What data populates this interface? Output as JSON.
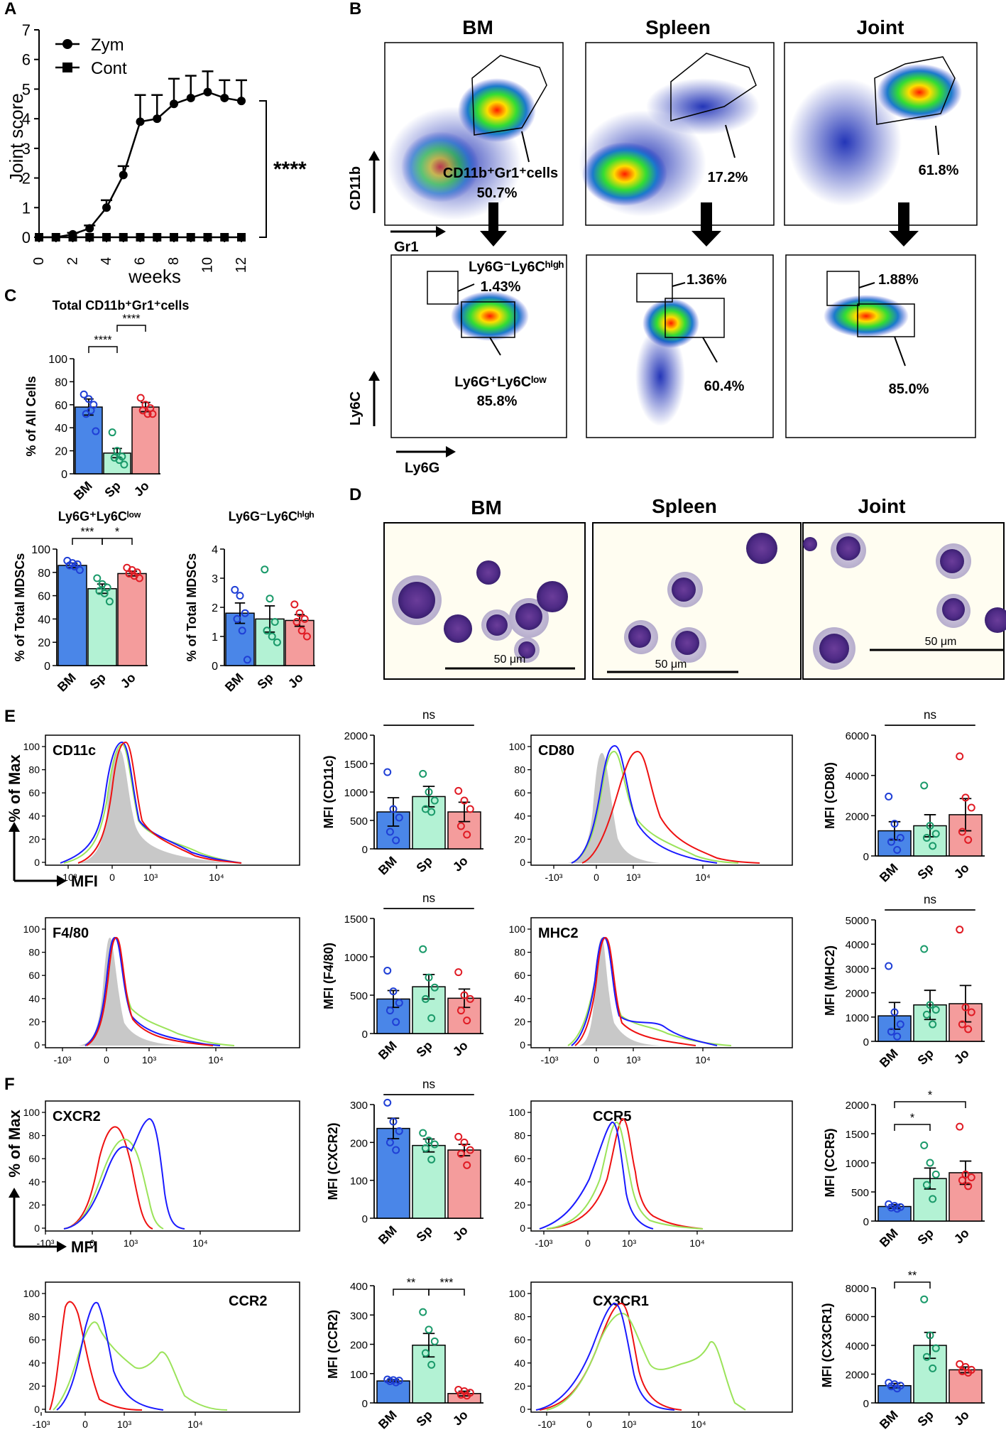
{
  "panels": {
    "A": {
      "letter": "A",
      "ylabel": "Joint score",
      "xlabel": "weeks",
      "significance": "****",
      "legend": [
        "Zym",
        "Cont"
      ],
      "yticks": [
        "0",
        "1",
        "2",
        "3",
        "4",
        "5",
        "6",
        "7"
      ],
      "xticks": [
        "0",
        "2",
        "4",
        "6",
        "8",
        "10",
        "12"
      ]
    },
    "B": {
      "letter": "B",
      "columns": [
        "BM",
        "Spleen",
        "Joint"
      ],
      "top_axis_y": "CD11b",
      "top_axis_x": "Gr1",
      "gate_label": "CD11b⁺Gr1⁺cells",
      "top_pct": [
        "50.7%",
        "17.2%",
        "61.8%"
      ],
      "bottom_axis_y": "Ly6C",
      "bottom_axis_x": "Ly6G",
      "high_label": "Ly6G⁻Ly6Cʰⁱᵍʰ",
      "low_label": "Ly6G⁺Ly6Cˡᵒʷ",
      "high_pct": [
        "1.43%",
        "1.36%",
        "1.88%"
      ],
      "low_pct": [
        "85.8%",
        "60.4%",
        "85.0%"
      ]
    },
    "C": {
      "letter": "C"
    },
    "D": {
      "letter": "D",
      "columns": [
        "BM",
        "Spleen",
        "Joint"
      ],
      "scale": "50 μm"
    },
    "E": {
      "letter": "E",
      "histo": [
        "CD11c",
        "CD80",
        "F4/80",
        "MHC2"
      ],
      "yaxis": "% of Max",
      "xaxis": "MFI",
      "xticks": [
        "-10³",
        "0",
        "10³",
        "10⁴"
      ],
      "hyticks": [
        "0",
        "20",
        "40",
        "60",
        "80",
        "100"
      ]
    },
    "F": {
      "letter": "F",
      "histo": [
        "CXCR2",
        "CCR5",
        "CCR2",
        "CX3CR1"
      ],
      "yaxis": "% of Max",
      "xaxis": "MFI"
    }
  },
  "chart_data": [
    {
      "id": "A",
      "type": "line",
      "title": "",
      "xlabel": "weeks",
      "ylabel": "Joint score",
      "ylim": [
        0,
        7
      ],
      "xlim": [
        0,
        12
      ],
      "series": [
        {
          "name": "Zym",
          "x": [
            0,
            1,
            2,
            3,
            4,
            5,
            6,
            7,
            8,
            9,
            10,
            11,
            12
          ],
          "values": [
            0,
            0,
            0.1,
            0.3,
            1.0,
            2.1,
            3.9,
            4.0,
            4.5,
            4.7,
            4.9,
            4.7,
            4.6
          ],
          "err": [
            0,
            0,
            0.05,
            0.1,
            0.25,
            0.3,
            0.9,
            0.8,
            0.85,
            0.75,
            0.7,
            0.6,
            0.7
          ]
        },
        {
          "name": "Cont",
          "x": [
            0,
            1,
            2,
            3,
            4,
            5,
            6,
            7,
            8,
            9,
            10,
            11,
            12
          ],
          "values": [
            0,
            0,
            0,
            0,
            0,
            0,
            0,
            0,
            0,
            0,
            0,
            0,
            0
          ]
        }
      ]
    },
    {
      "id": "C1",
      "type": "bar",
      "title": "Total CD11b⁺Gr1⁺cells",
      "ylabel": "% of All Cells",
      "ylim": [
        0,
        100
      ],
      "yticks": [
        "0",
        "20",
        "40",
        "60",
        "80",
        "100"
      ],
      "categories": [
        "BM",
        "Sp",
        "Jo"
      ],
      "values": [
        58,
        18,
        58
      ],
      "err": [
        7,
        4,
        4
      ],
      "points": [
        [
          69,
          65,
          60,
          52,
          55,
          37
        ],
        [
          36,
          20,
          15,
          14,
          12,
          8
        ],
        [
          66,
          60,
          57,
          55,
          52,
          52
        ]
      ],
      "brackets": [
        {
          "from": 0,
          "to": 1,
          "label": "****"
        },
        {
          "from": 1,
          "to": 2,
          "label": "****"
        }
      ]
    },
    {
      "id": "C2",
      "type": "bar",
      "title": "Ly6G⁺Ly6Cˡᵒʷ",
      "ylabel": "% of Total MDSCs",
      "ylim": [
        0,
        100
      ],
      "yticks": [
        "0",
        "20",
        "40",
        "60",
        "80",
        "100"
      ],
      "categories": [
        "BM",
        "Sp",
        "Jo"
      ],
      "values": [
        86,
        66,
        79
      ],
      "err": [
        2,
        4,
        2
      ],
      "points": [
        [
          90,
          88,
          87,
          86,
          85,
          82
        ],
        [
          75,
          70,
          67,
          64,
          62,
          55
        ],
        [
          84,
          82,
          80,
          79,
          77,
          75
        ]
      ],
      "brackets": [
        {
          "from": 0,
          "to": 1,
          "label": "***"
        },
        {
          "from": 1,
          "to": 2,
          "label": "*"
        }
      ]
    },
    {
      "id": "C3",
      "type": "bar",
      "title": "Ly6G⁻Ly6Cʰⁱᵍʰ",
      "ylabel": "% of Total MDSCs",
      "ylim": [
        0,
        4
      ],
      "yticks": [
        "0",
        "1",
        "2",
        "3",
        "4"
      ],
      "categories": [
        "BM",
        "Sp",
        "Jo"
      ],
      "values": [
        1.8,
        1.6,
        1.55
      ],
      "err": [
        0.35,
        0.45,
        0.2
      ],
      "points": [
        [
          2.6,
          2.4,
          1.8,
          1.6,
          1.2,
          0.2
        ],
        [
          3.3,
          2.3,
          1.5,
          1.2,
          1.0,
          0.8
        ],
        [
          2.1,
          1.8,
          1.6,
          1.5,
          1.2,
          1.0
        ]
      ],
      "brackets": []
    },
    {
      "id": "E1",
      "type": "bar",
      "ylabel": "MFI (CD11c)",
      "ylim": [
        0,
        2000
      ],
      "yticks": [
        "0",
        "500",
        "1000",
        "1500",
        "2000"
      ],
      "categories": [
        "BM",
        "Sp",
        "Jo"
      ],
      "values": [
        650,
        920,
        650
      ],
      "err": [
        250,
        180,
        170
      ],
      "points": [
        [
          1350,
          700,
          550,
          300,
          150
        ],
        [
          1320,
          1000,
          850,
          700,
          650
        ],
        [
          1020,
          850,
          700,
          400,
          250
        ]
      ],
      "brackets": [
        {
          "span": "all",
          "label": "ns"
        }
      ]
    },
    {
      "id": "E2",
      "type": "bar",
      "ylabel": "MFI (CD80)",
      "ylim": [
        0,
        6000
      ],
      "yticks": [
        "0",
        "2000",
        "4000",
        "6000"
      ],
      "categories": [
        "BM",
        "Sp",
        "Jo"
      ],
      "values": [
        1250,
        1500,
        2050
      ],
      "err": [
        450,
        550,
        800
      ],
      "points": [
        [
          2950,
          1600,
          900,
          700,
          300
        ],
        [
          3500,
          1500,
          1100,
          900,
          500
        ],
        [
          4950,
          2900,
          2400,
          1200,
          800
        ]
      ],
      "brackets": [
        {
          "span": "all",
          "label": "ns"
        }
      ]
    },
    {
      "id": "E3",
      "type": "bar",
      "ylabel": "MFI (F4/80)",
      "ylim": [
        0,
        1500
      ],
      "yticks": [
        "0",
        "500",
        "1000",
        "1500"
      ],
      "categories": [
        "BM",
        "Sp",
        "Jo"
      ],
      "values": [
        450,
        610,
        460
      ],
      "err": [
        110,
        160,
        120
      ],
      "points": [
        [
          820,
          550,
          400,
          300,
          150
        ],
        [
          1100,
          730,
          600,
          450,
          200
        ],
        [
          800,
          500,
          450,
          300,
          170
        ]
      ],
      "brackets": [
        {
          "span": "all",
          "label": "ns"
        }
      ]
    },
    {
      "id": "E4",
      "type": "bar",
      "ylabel": "MFI (MHC2)",
      "ylim": [
        0,
        5000
      ],
      "yticks": [
        "0",
        "1000",
        "2000",
        "3000",
        "4000",
        "5000"
      ],
      "categories": [
        "BM",
        "Sp",
        "Jo"
      ],
      "values": [
        1050,
        1500,
        1550
      ],
      "err": [
        550,
        600,
        750
      ],
      "points": [
        [
          3100,
          1200,
          700,
          400,
          200
        ],
        [
          3800,
          1500,
          1300,
          1100,
          700
        ],
        [
          4600,
          1400,
          1200,
          700,
          500
        ]
      ],
      "brackets": [
        {
          "span": "all",
          "label": "ns"
        }
      ]
    },
    {
      "id": "F1",
      "type": "bar",
      "ylabel": "MFI (CXCR2)",
      "ylim": [
        0,
        300
      ],
      "yticks": [
        "0",
        "100",
        "200",
        "300"
      ],
      "categories": [
        "BM",
        "Sp",
        "Jo"
      ],
      "values": [
        237,
        192,
        180
      ],
      "err": [
        27,
        17,
        15
      ],
      "points": [
        [
          305,
          255,
          230,
          200,
          180
        ],
        [
          225,
          205,
          195,
          185,
          155
        ],
        [
          215,
          200,
          180,
          170,
          140
        ]
      ],
      "brackets": [
        {
          "span": "all",
          "label": "ns"
        }
      ]
    },
    {
      "id": "F2",
      "type": "bar",
      "ylabel": "MFI (CCR5)",
      "ylim": [
        0,
        2000
      ],
      "yticks": [
        "0",
        "500",
        "1000",
        "1500",
        "2000"
      ],
      "categories": [
        "BM",
        "Sp",
        "Jo"
      ],
      "values": [
        250,
        730,
        830
      ],
      "err": [
        30,
        180,
        200
      ],
      "points": [
        [
          290,
          260,
          240,
          230,
          210
        ],
        [
          1300,
          1000,
          800,
          620,
          380
        ],
        [
          1620,
          800,
          750,
          700,
          600
        ]
      ],
      "brackets": [
        {
          "from": 0,
          "to": 1,
          "label": "*"
        },
        {
          "from": 0,
          "to": 2,
          "label": "*"
        }
      ]
    },
    {
      "id": "F3",
      "type": "bar",
      "ylabel": "MFI (CCR2)",
      "ylim": [
        0,
        400
      ],
      "yticks": [
        "0",
        "100",
        "200",
        "300",
        "400"
      ],
      "categories": [
        "BM",
        "Sp",
        "Jo"
      ],
      "values": [
        75,
        197,
        32
      ],
      "err": [
        5,
        40,
        8
      ],
      "points": [
        [
          80,
          78,
          76,
          74,
          70
        ],
        [
          310,
          250,
          210,
          170,
          130
        ],
        [
          45,
          40,
          35,
          28,
          25
        ]
      ],
      "brackets": [
        {
          "from": 0,
          "to": 1,
          "label": "**"
        },
        {
          "from": 1,
          "to": 2,
          "label": "***"
        }
      ]
    },
    {
      "id": "F4",
      "type": "bar",
      "ylabel": "MFI (CX3CR1)",
      "ylim": [
        0,
        8000
      ],
      "yticks": [
        "0",
        "2000",
        "4000",
        "6000",
        "8000"
      ],
      "categories": [
        "BM",
        "Sp",
        "Jo"
      ],
      "values": [
        1200,
        4000,
        2300
      ],
      "err": [
        150,
        900,
        200
      ],
      "points": [
        [
          1400,
          1300,
          1200,
          1150,
          1000
        ],
        [
          7200,
          4700,
          3800,
          3200,
          2400
        ],
        [
          2700,
          2500,
          2300,
          2200,
          2100
        ]
      ],
      "brackets": [
        {
          "from": 0,
          "to": 1,
          "label": "**"
        }
      ]
    }
  ],
  "colors": {
    "bm": "#4a86e8",
    "sp": "#b3f2d4",
    "jo": "#f49c9c",
    "bm_pt": "#1f3fd6",
    "sp_pt": "#1a9a6a",
    "jo_pt": "#e01b24",
    "hist_bm": "#1a1aff",
    "hist_sp": "#9be35a",
    "hist_jo": "#ee1111",
    "hist_iso": "#c8c8c8"
  }
}
